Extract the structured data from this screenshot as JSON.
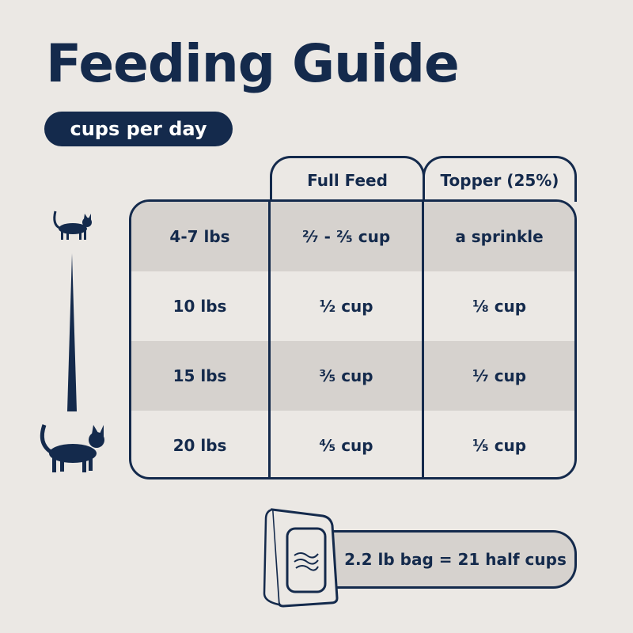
{
  "title": "Feeding Guide",
  "unit_pill": "cups per day",
  "headers": [
    "Full Feed",
    "Topper (25%)"
  ],
  "rows": [
    {
      "weight": "4-7 lbs",
      "full": "²⁄₇ - ²⁄₅ cup",
      "topper": "a sprinkle"
    },
    {
      "weight": "10 lbs",
      "full": "¹⁄₂ cup",
      "topper": "¹⁄₈ cup"
    },
    {
      "weight": "15 lbs",
      "full": "³⁄₅ cup",
      "topper": "¹⁄₇ cup"
    },
    {
      "weight": "20 lbs",
      "full": "⁴⁄₅ cup",
      "topper": "¹⁄₅ cup"
    }
  ],
  "bag_note": "2.2 lb bag = 21 half cups",
  "colors": {
    "navy": "#142a4c",
    "background": "#ebe8e4",
    "shade": "#d6d2ce"
  }
}
